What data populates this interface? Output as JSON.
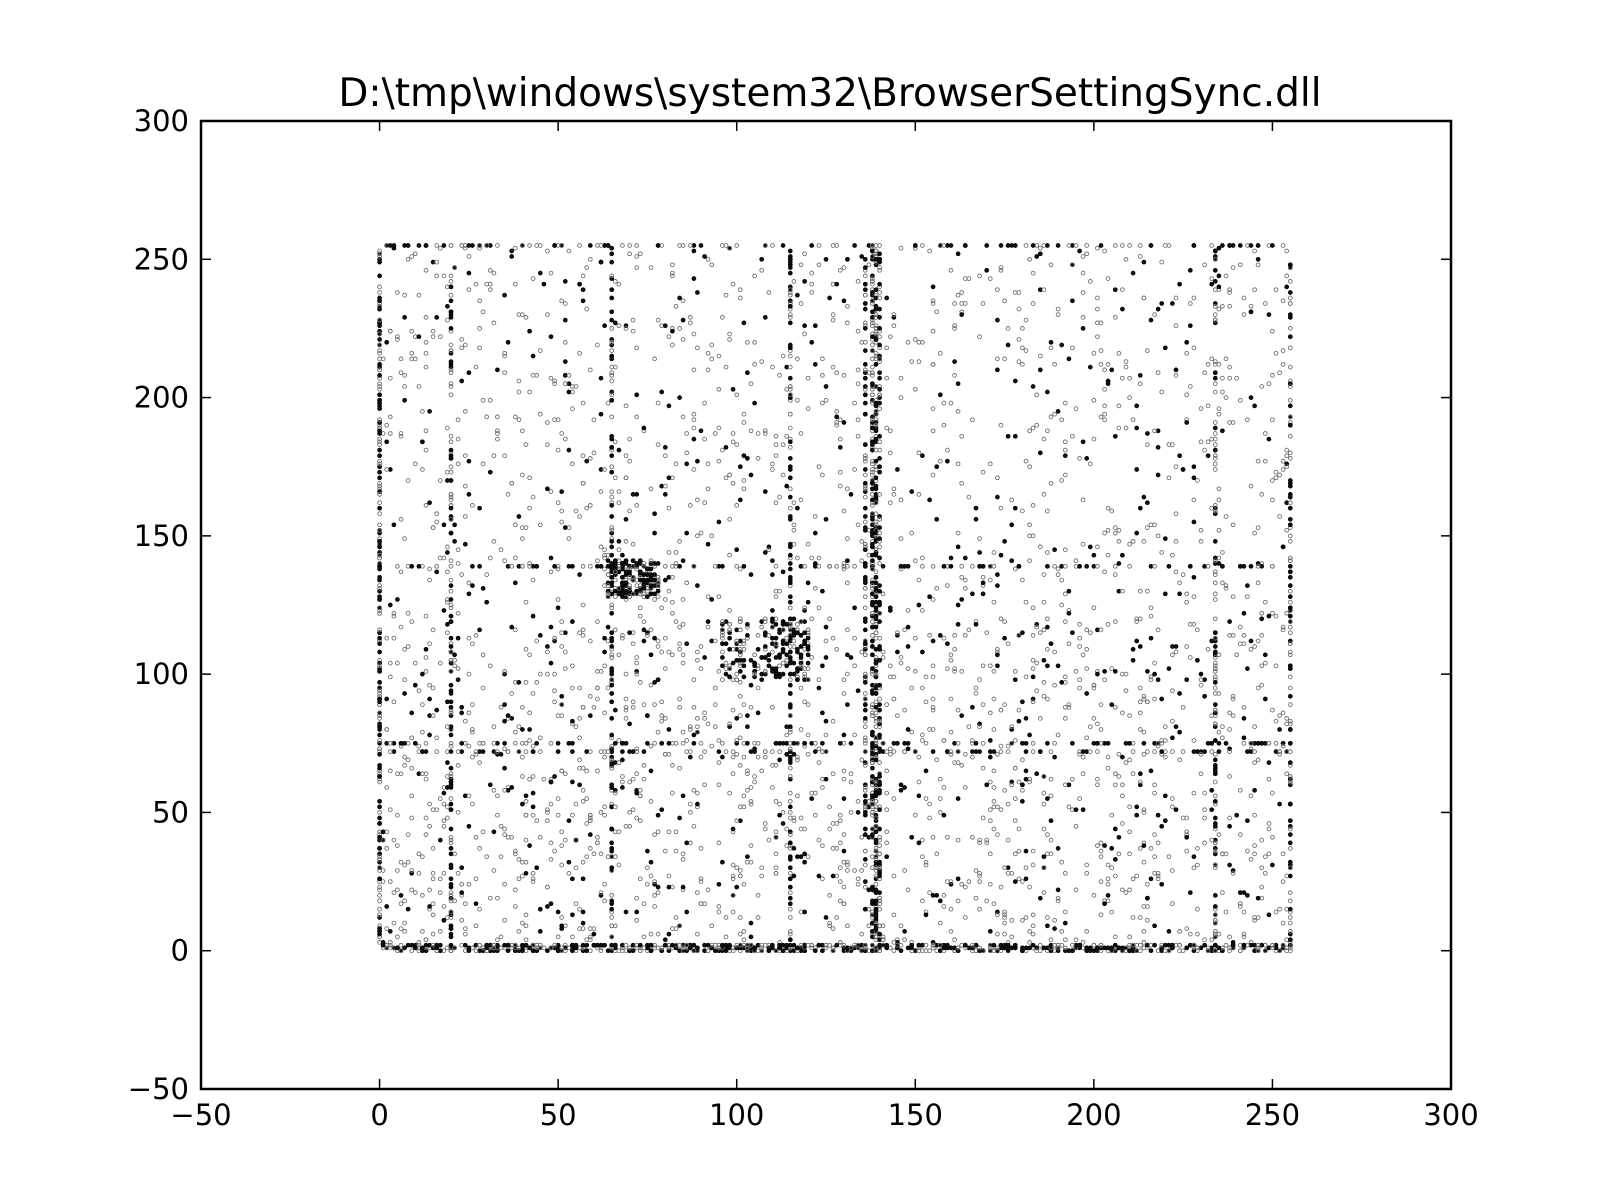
{
  "chart_data": {
    "type": "scatter",
    "title": "D:\\tmp\\windows\\system32\\BrowserSettingSync.dll",
    "xlabel": "",
    "ylabel": "",
    "xlim": [
      -50,
      300
    ],
    "ylim": [
      -50,
      300
    ],
    "x_ticks": [
      "−50",
      "0",
      "50",
      "100",
      "150",
      "200",
      "250",
      "300"
    ],
    "y_ticks": [
      "−50",
      "0",
      "50",
      "100",
      "150",
      "200",
      "250",
      "300"
    ],
    "x_tick_values": [
      -50,
      0,
      50,
      100,
      150,
      200,
      250,
      300
    ],
    "y_tick_values": [
      -50,
      0,
      50,
      100,
      150,
      200,
      250,
      300
    ],
    "grid": false,
    "marker_color": "#000000",
    "marker_style": "small hollow circles, semi-transparent",
    "data_extent": {
      "x": [
        0,
        255
      ],
      "y": [
        0,
        255
      ]
    },
    "dense_rows_y": [
      0,
      1,
      2,
      72,
      75,
      139,
      255
    ],
    "dense_columns_x": [
      0,
      20,
      65,
      115,
      136,
      138,
      139,
      140,
      234,
      255
    ],
    "clusters": [
      {
        "x": [
          96,
          120
        ],
        "y": [
          98,
          120
        ]
      },
      {
        "x": [
          64,
          78
        ],
        "y": [
          128,
          141
        ]
      }
    ]
  }
}
